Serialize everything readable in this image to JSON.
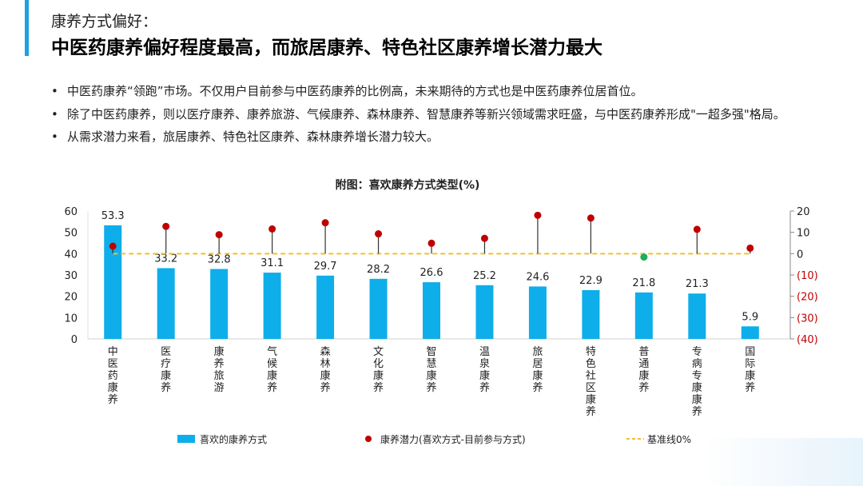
{
  "header": {
    "subtitle": "康养方式偏好：",
    "title": "中医药康养偏好程度最高，而旅居康养、特色社区康养增长潜力最大"
  },
  "bullets": [
    "中医药康养“领跑”市场。不仅用户目前参与中医药康养的比例高，未来期待的方式也是中医药康养位居首位。",
    "除了中医药康养，则以医疗康养、康养旅游、气候康养、森林康养、智慧康养等新兴领域需求旺盛，与中医药康养形成\"一超多强\"格局。",
    "从需求潜力来看，旅居康养、特色社区康养、森林康养增长潜力较大。"
  ],
  "chart_data": {
    "type": "bar",
    "title": "附图：喜欢康养方式类型(%)",
    "categories": [
      "中医药康养",
      "医疗康养",
      "康养旅游",
      "气候康养",
      "森林康养",
      "文化康养",
      "智慧康养",
      "温泉康养",
      "旅居康养",
      "特色社区康养",
      "普通康养",
      "专病专康康养",
      "国际康养"
    ],
    "series": [
      {
        "name": "喜欢的康养方式",
        "type": "bar",
        "axis": "left",
        "color": "#0eaeea",
        "values": [
          53.3,
          33.2,
          32.8,
          31.1,
          29.7,
          28.2,
          26.6,
          25.2,
          24.6,
          22.9,
          21.8,
          21.3,
          5.9
        ]
      },
      {
        "name": "康养潜力(喜欢方式-目前参与方式)",
        "type": "lollipop",
        "axis": "right",
        "color": "#c00000",
        "negative_color": "#1fae5a",
        "values": [
          3.5,
          12.8,
          8.9,
          11.6,
          14.5,
          9.3,
          4.9,
          7.2,
          18.0,
          16.7,
          -1.6,
          11.4,
          2.6
        ]
      },
      {
        "name": "基准线0%",
        "type": "line",
        "axis": "right",
        "color": "#f0c030",
        "value": 0
      }
    ],
    "left_axis": {
      "ylim": [
        0,
        60
      ],
      "ticks": [
        "0",
        "10",
        "20",
        "30",
        "40",
        "50",
        "60"
      ]
    },
    "right_axis": {
      "ylim": [
        -40,
        20
      ],
      "ticks": [
        "(40)",
        "(30)",
        "(20)",
        "(10)",
        "0",
        "10",
        "20"
      ],
      "negative_label_color": "#c00000"
    },
    "legend": "bottom"
  }
}
